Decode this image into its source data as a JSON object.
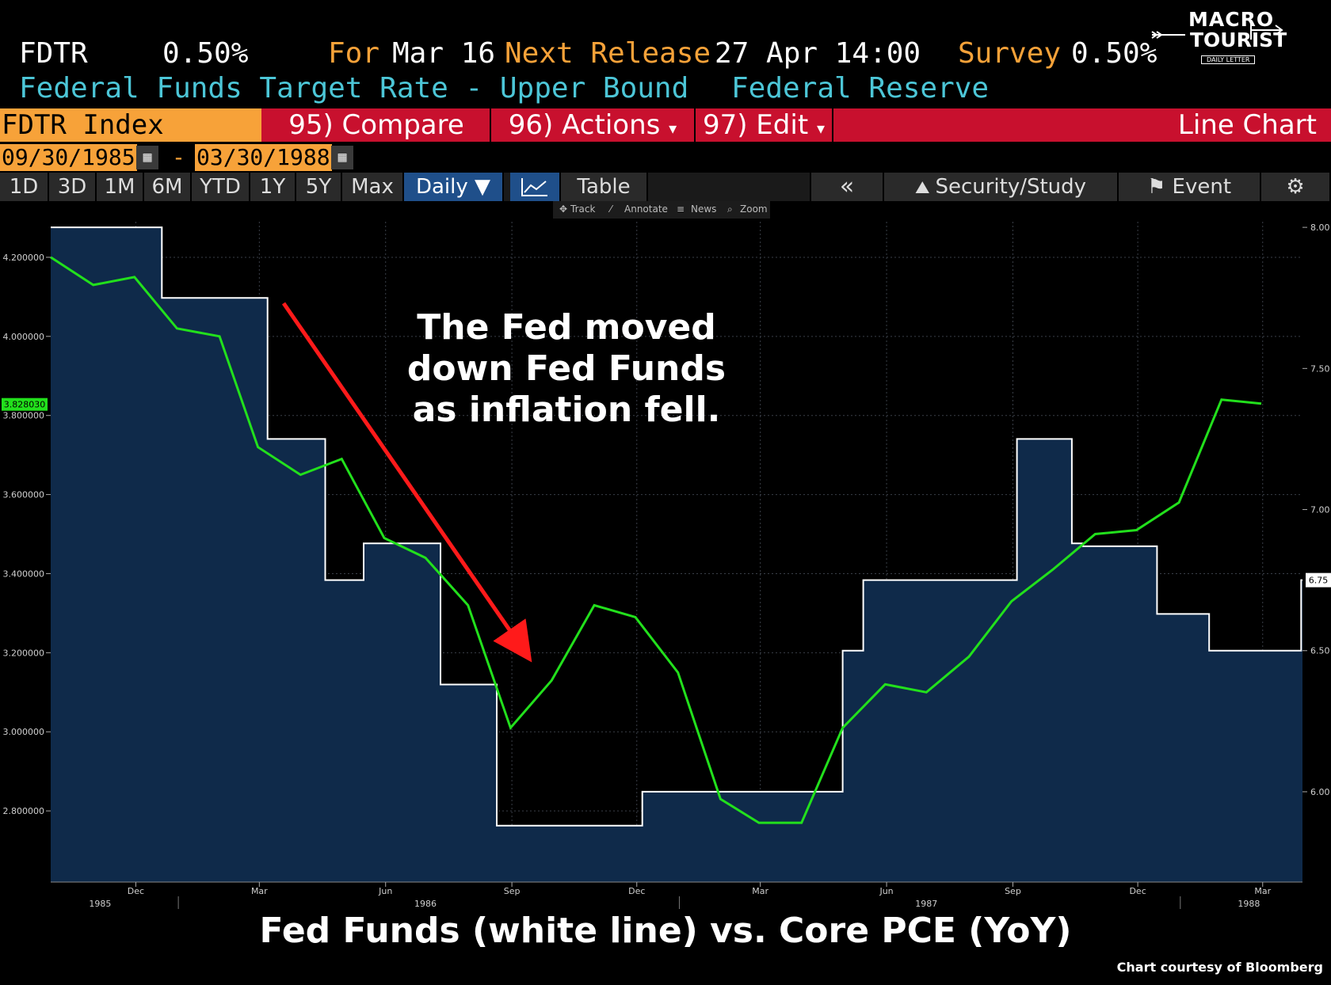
{
  "header": {
    "ticker": "FDTR",
    "value": "0.50%",
    "for_label": "For",
    "for_date": "Mar 16",
    "next_label": "Next Release",
    "next_date": "27 Apr 14:00",
    "survey_label": "Survey",
    "survey_value": "0.50%",
    "name": "Federal Funds Target Rate - Upper Bound",
    "source": "Federal Reserve"
  },
  "logo": {
    "line1": "MACRO",
    "line2": "TOURIST",
    "line3": "DAILY LETTER"
  },
  "toolbar": {
    "index": "FDTR Index",
    "compare": "95) Compare",
    "actions": "96) Actions",
    "edit": "97) Edit",
    "chart_type": "Line Chart"
  },
  "range": {
    "start": "09/30/1985",
    "dash": "-",
    "end": "03/30/1988"
  },
  "periods": [
    "1D",
    "3D",
    "1M",
    "6M",
    "YTD",
    "1Y",
    "5Y",
    "Max"
  ],
  "frequency": "Daily ▼",
  "table_label": "Table",
  "collapse_label": "«",
  "security_study": "Security/Study",
  "event_label": "Event",
  "mini_tools": [
    "Track",
    "Annotate",
    "News",
    "Zoom"
  ],
  "annotation": [
    "The Fed moved",
    "down Fed Funds",
    "as inflation fell."
  ],
  "footer_title": "Fed Funds (white line) vs. Core PCE (YoY)",
  "credit": "Chart courtesy of Bloomberg",
  "colors": {
    "fed_line": "#ffffff",
    "fed_fill": "#0f2a4a",
    "pce_line": "#22e01c",
    "arrow": "#ff1a1a",
    "grid": "#3a3f48"
  },
  "chart_data": {
    "type": "line",
    "xlim": [
      "1985-09-30",
      "1988-03-30"
    ],
    "left_axis": {
      "ticks": [
        "4.200000",
        "4.000000",
        "3.800000",
        "3.600000",
        "3.400000",
        "3.200000",
        "3.000000",
        "2.800000"
      ],
      "ylim": [
        2.62,
        4.29
      ],
      "last_label": "3.828030"
    },
    "right_axis": {
      "ticks": [
        "8.00",
        "7.50",
        "7.00",
        "6.50",
        "6.00"
      ],
      "ylim": [
        5.68,
        8.02
      ],
      "last_label": "6.75"
    },
    "x_month_ticks": [
      "Dec",
      "Mar",
      "Jun",
      "Sep",
      "Dec",
      "Mar",
      "Jun",
      "Sep",
      "Dec",
      "Mar"
    ],
    "x_year_ticks": [
      "1985",
      "1986",
      "1987",
      "1988"
    ],
    "series": [
      {
        "name": "Fed Funds (white line)",
        "axis": "right",
        "steps": [
          [
            "1985-09-30",
            8.0
          ],
          [
            "1985-12-20",
            7.75
          ],
          [
            "1986-03-07",
            7.25
          ],
          [
            "1986-04-18",
            6.75
          ],
          [
            "1986-05-16",
            6.88
          ],
          [
            "1986-07-11",
            6.38
          ],
          [
            "1986-08-21",
            5.88
          ],
          [
            "1986-12-05",
            6.0
          ],
          [
            "1987-04-30",
            6.5
          ],
          [
            "1987-05-15",
            6.75
          ],
          [
            "1987-09-04",
            7.25
          ],
          [
            "1987-10-14",
            6.88
          ],
          [
            "1987-10-22",
            6.87
          ],
          [
            "1987-12-15",
            6.63
          ],
          [
            "1988-01-22",
            6.5
          ],
          [
            "1988-03-29",
            6.75
          ]
        ]
      },
      {
        "name": "Core PCE (YoY)",
        "axis": "left",
        "points": [
          [
            "1985-09-30",
            4.2
          ],
          [
            "1985-10-31",
            4.13
          ],
          [
            "1985-11-30",
            4.15
          ],
          [
            "1985-12-31",
            4.02
          ],
          [
            "1986-01-31",
            4.0
          ],
          [
            "1986-02-28",
            3.72
          ],
          [
            "1986-03-31",
            3.65
          ],
          [
            "1986-04-30",
            3.69
          ],
          [
            "1986-05-31",
            3.49
          ],
          [
            "1986-06-30",
            3.44
          ],
          [
            "1986-07-31",
            3.32
          ],
          [
            "1986-08-31",
            3.01
          ],
          [
            "1986-09-30",
            3.13
          ],
          [
            "1986-10-31",
            3.32
          ],
          [
            "1986-11-30",
            3.29
          ],
          [
            "1986-12-31",
            3.15
          ],
          [
            "1987-01-31",
            2.83
          ],
          [
            "1987-02-28",
            2.77
          ],
          [
            "1987-03-31",
            2.77
          ],
          [
            "1987-04-30",
            3.01
          ],
          [
            "1987-05-31",
            3.12
          ],
          [
            "1987-06-30",
            3.1
          ],
          [
            "1987-07-31",
            3.19
          ],
          [
            "1987-08-31",
            3.33
          ],
          [
            "1987-09-30",
            3.41
          ],
          [
            "1987-10-31",
            3.5
          ],
          [
            "1987-11-30",
            3.51
          ],
          [
            "1987-12-31",
            3.58
          ],
          [
            "1988-01-31",
            3.84
          ],
          [
            "1988-02-29",
            3.83
          ]
        ]
      }
    ]
  }
}
